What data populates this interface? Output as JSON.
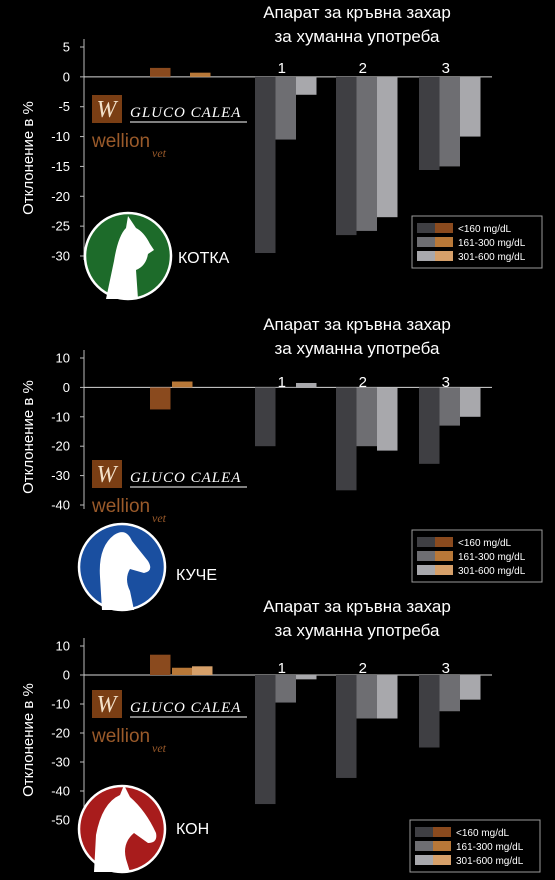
{
  "colors": {
    "background": "#000000",
    "gluco_series": [
      "#8a4a1e",
      "#b87838",
      "#d6a06a"
    ],
    "human_series": [
      "#3f3f43",
      "#6e6e72",
      "#a8a8ac"
    ],
    "cat_circle": "#1d6b2a",
    "dog_circle": "#1a4fa0",
    "horse_circle": "#a81c1c"
  },
  "brand": {
    "w_letter": "W",
    "gluco_calea": "GLUCO CALEA",
    "wellion": "wellion",
    "vet": "vet"
  },
  "chart_data": [
    {
      "type": "bar",
      "animal": "КОТКА",
      "title_lines": [
        "Апарат за кръвна захар",
        "за хуманна употреба"
      ],
      "ylabel": "Отклонение в %",
      "ylim": [
        -30,
        5
      ],
      "yticks": [
        5,
        0,
        -5,
        -10,
        -15,
        -20,
        -25,
        -30
      ],
      "legend": [
        "<160 mg/dL",
        "161-300 mg/dL",
        "301-600 mg/dL"
      ],
      "legend_position": "right",
      "brand_values": [
        1.5,
        0.7
      ],
      "group_labels": [
        "1",
        "2",
        "3"
      ],
      "groups": [
        [
          -29.5,
          -10.5,
          -3
        ],
        [
          -26.5,
          -25.8,
          -23.5
        ],
        [
          -15.6,
          -15,
          -10
        ]
      ]
    },
    {
      "type": "bar",
      "animal": "КУЧЕ",
      "title_lines": [
        "Апарат за кръвна захар",
        "за хуманна употреба"
      ],
      "ylabel": "Отклонение в %",
      "ylim": [
        -40,
        10
      ],
      "yticks": [
        10,
        0,
        -10,
        -20,
        -30,
        -40
      ],
      "legend": [
        "<160 mg/dL",
        "161-300 mg/dL",
        "301-600 mg/dL"
      ],
      "legend_position": "right",
      "brand_values": [
        -7.5,
        2
      ],
      "group_labels": [
        "1",
        "2",
        "3"
      ],
      "groups": [
        [
          -20,
          0,
          1.5
        ],
        [
          -35,
          -20,
          -21.5
        ],
        [
          -26,
          -13,
          -10
        ]
      ]
    },
    {
      "type": "bar",
      "animal": "КОН",
      "title_lines": [
        "Апарат за кръвна захар",
        "за хуманна употреба"
      ],
      "ylabel": "Отклонение в %",
      "ylim": [
        -50,
        10
      ],
      "yticks": [
        10,
        0,
        -10,
        -20,
        -30,
        -40,
        -50
      ],
      "legend": [
        "<160 mg/dL",
        "161-300 mg/dL",
        "301-600 mg/dL"
      ],
      "legend_position": "bottom-right",
      "brand_values": [
        7,
        2.5,
        3
      ],
      "group_labels": [
        "1",
        "2",
        "3"
      ],
      "groups": [
        [
          -44.5,
          -9.5,
          -1.5
        ],
        [
          -35.5,
          -15,
          -15
        ],
        [
          -25,
          -12.5,
          -8.5
        ]
      ]
    }
  ]
}
